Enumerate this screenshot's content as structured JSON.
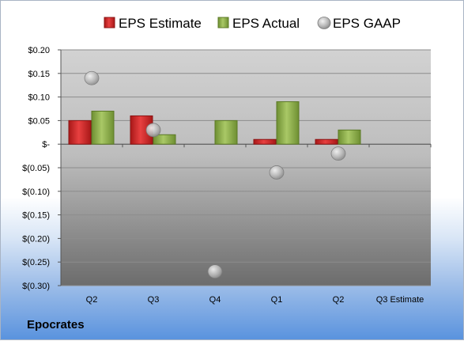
{
  "company": "Epocrates",
  "chart_data": {
    "type": "bar",
    "categories": [
      "Q2",
      "Q3",
      "Q4",
      "Q1",
      "Q2",
      "Q3 Estimate"
    ],
    "series": [
      {
        "name": "EPS Estimate",
        "kind": "bar",
        "color": "#d42a2a",
        "values": [
          0.05,
          0.06,
          null,
          0.01,
          0.01,
          null
        ]
      },
      {
        "name": "EPS Actual",
        "kind": "bar",
        "color": "#8fb24a",
        "values": [
          0.07,
          0.02,
          0.05,
          0.09,
          0.03,
          null
        ]
      },
      {
        "name": "EPS GAAP",
        "kind": "marker",
        "color": "#b4b4b4",
        "values": [
          0.14,
          0.03,
          -0.27,
          -0.06,
          -0.02,
          null
        ]
      }
    ],
    "y_ticks": [
      {
        "value": 0.2,
        "label": "$0.20"
      },
      {
        "value": 0.15,
        "label": "$0.15"
      },
      {
        "value": 0.1,
        "label": "$0.10"
      },
      {
        "value": 0.05,
        "label": "$0.05"
      },
      {
        "value": 0.0,
        "label": "$-"
      },
      {
        "value": -0.05,
        "label": "$(0.05)"
      },
      {
        "value": -0.1,
        "label": "$(0.10)"
      },
      {
        "value": -0.15,
        "label": "$(0.15)"
      },
      {
        "value": -0.2,
        "label": "$(0.20)"
      },
      {
        "value": -0.25,
        "label": "$(0.25)"
      },
      {
        "value": -0.3,
        "label": "$(0.30)"
      }
    ],
    "ylim": [
      -0.3,
      0.2
    ],
    "grid": true,
    "legend_position": "top"
  }
}
